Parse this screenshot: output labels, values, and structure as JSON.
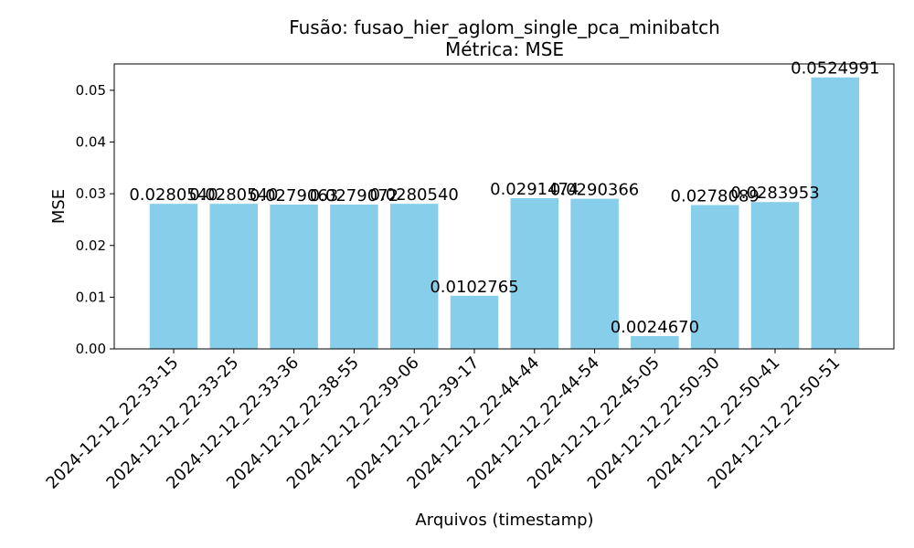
{
  "chart_data": {
    "type": "bar",
    "title": "Fusão: fusao_hier_aglom_single_pca_minibatch",
    "subtitle": "Métrica: MSE",
    "xlabel": "Arquivos (timestamp)",
    "ylabel": "MSE",
    "categories": [
      "2024-12-12_22-33-15",
      "2024-12-12_22-33-25",
      "2024-12-12_22-33-36",
      "2024-12-12_22-38-55",
      "2024-12-12_22-39-06",
      "2024-12-12_22-39-17",
      "2024-12-12_22-44-44",
      "2024-12-12_22-44-54",
      "2024-12-12_22-45-05",
      "2024-12-12_22-50-30",
      "2024-12-12_22-50-41",
      "2024-12-12_22-50-51"
    ],
    "values": [
      0.028054,
      0.028054,
      0.0279063,
      0.0279072,
      0.028054,
      0.0102765,
      0.0291474,
      0.0290366,
      0.002467,
      0.0278089,
      0.0283953,
      0.0524991
    ],
    "data_labels": [
      "0.0280540",
      "0.0280540",
      "0.0279063",
      "0.0279072",
      "0.0280540",
      "0.0102765",
      "0.0291474",
      "0.0290366",
      "0.0024670",
      "0.0278089",
      "0.0283953",
      "0.0524991"
    ],
    "y_ticks": [
      0.0,
      0.01,
      0.02,
      0.03,
      0.04,
      0.05
    ],
    "y_tick_labels": [
      "0.00",
      "0.01",
      "0.02",
      "0.03",
      "0.04",
      "0.05"
    ],
    "ylim": [
      0,
      0.0551
    ],
    "bar_color": "#87CEEB",
    "grid": false,
    "legend": "none"
  }
}
